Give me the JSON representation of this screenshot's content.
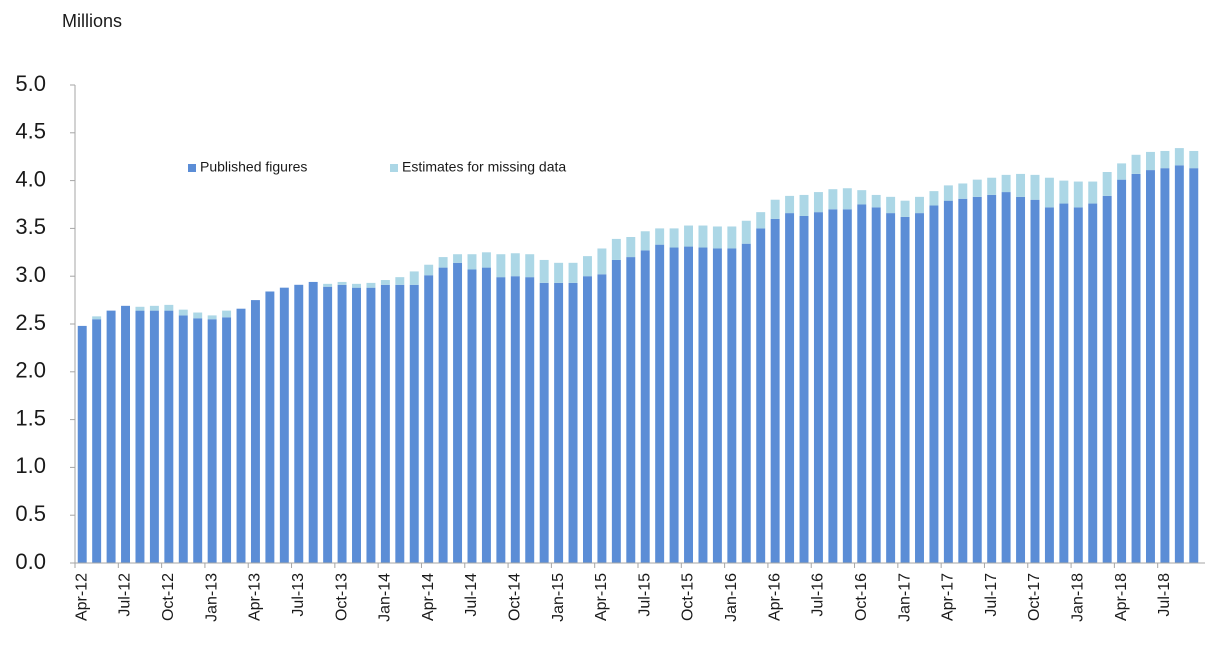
{
  "chart_data": {
    "type": "stacked-bar",
    "y_label": "Millions",
    "categories": [
      "Apr-12",
      null,
      null,
      "Jul-12",
      null,
      null,
      "Oct-12",
      null,
      null,
      "Jan-13",
      null,
      null,
      "Apr-13",
      null,
      null,
      "Jul-13",
      null,
      null,
      "Oct-13",
      null,
      null,
      "Jan-14",
      null,
      null,
      "Apr-14",
      null,
      null,
      "Jul-14",
      null,
      null,
      "Oct-14",
      null,
      null,
      "Jan-15",
      null,
      null,
      "Apr-15",
      null,
      null,
      "Jul-15",
      null,
      null,
      "Oct-15",
      null,
      null,
      "Jan-16",
      null,
      null,
      "Apr-16",
      null,
      null,
      "Jul-16",
      null,
      null,
      "Oct-16",
      null,
      null,
      "Jan-17",
      null,
      null,
      "Apr-17",
      null,
      null,
      "Jul-17",
      null,
      null,
      "Oct-17",
      null,
      null,
      "Jan-18",
      null,
      null,
      "Apr-18",
      null,
      null,
      "Jul-18",
      null,
      null
    ],
    "series": [
      {
        "name": "Published figures",
        "color": "#5b8dd6",
        "values": [
          2.48,
          2.55,
          2.64,
          2.69,
          2.64,
          2.64,
          2.64,
          2.59,
          2.56,
          2.55,
          2.57,
          2.66,
          2.75,
          2.84,
          2.88,
          2.91,
          2.94,
          2.89,
          2.91,
          2.88,
          2.88,
          2.91,
          2.91,
          2.91,
          3.01,
          3.09,
          3.14,
          3.07,
          3.09,
          2.99,
          3.0,
          2.99,
          2.93,
          2.93,
          2.93,
          3.0,
          3.02,
          3.17,
          3.2,
          3.27,
          3.33,
          3.3,
          3.31,
          3.3,
          3.29,
          3.29,
          3.34,
          3.5,
          3.6,
          3.66,
          3.63,
          3.67,
          3.7,
          3.7,
          3.75,
          3.72,
          3.66,
          3.62,
          3.66,
          3.74,
          3.79,
          3.81,
          3.83,
          3.85,
          3.88,
          3.83,
          3.8,
          3.72,
          3.76,
          3.72,
          3.76,
          3.84,
          4.01,
          4.07,
          4.11,
          4.13,
          4.16,
          4.13
        ]
      },
      {
        "name": "Estimates for missing data",
        "color": "#acd7e6",
        "values": [
          0,
          0.03,
          0,
          0,
          0.04,
          0.05,
          0.06,
          0.06,
          0.06,
          0.04,
          0.07,
          0,
          0,
          0,
          0,
          0,
          0,
          0.03,
          0.03,
          0.04,
          0.05,
          0.05,
          0.08,
          0.14,
          0.11,
          0.11,
          0.09,
          0.16,
          0.16,
          0.24,
          0.24,
          0.24,
          0.24,
          0.21,
          0.21,
          0.21,
          0.27,
          0.22,
          0.21,
          0.2,
          0.17,
          0.2,
          0.22,
          0.23,
          0.23,
          0.23,
          0.24,
          0.17,
          0.2,
          0.18,
          0.22,
          0.21,
          0.21,
          0.22,
          0.15,
          0.13,
          0.17,
          0.17,
          0.17,
          0.15,
          0.16,
          0.16,
          0.18,
          0.18,
          0.18,
          0.24,
          0.26,
          0.31,
          0.24,
          0.27,
          0.23,
          0.25,
          0.17,
          0.2,
          0.19,
          0.18,
          0.18,
          0.18
        ]
      }
    ],
    "ylim": [
      0,
      5
    ],
    "yticks": [
      {
        "value": 0,
        "label": "0.0"
      },
      0.5,
      {
        "value": 1,
        "label": "1.0"
      },
      1.5,
      {
        "value": 2,
        "label": "2.0"
      },
      2.5,
      {
        "value": 3,
        "label": "3.0"
      },
      3.5,
      {
        "value": 4,
        "label": "4.0"
      },
      4.5,
      {
        "value": 5,
        "label": "5.0"
      }
    ],
    "grid": false,
    "legend": "top-left"
  }
}
